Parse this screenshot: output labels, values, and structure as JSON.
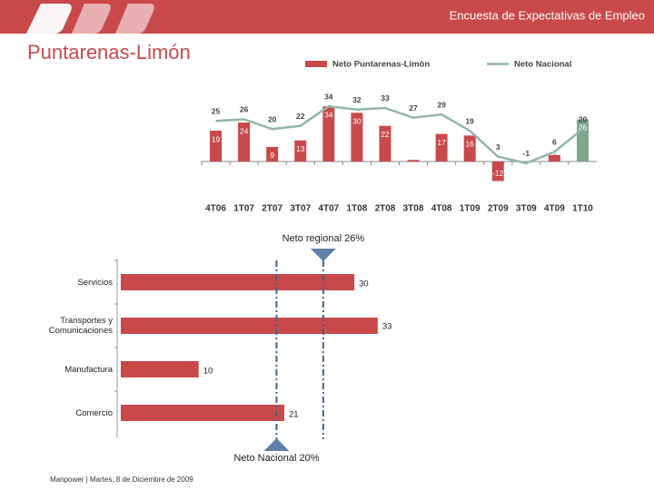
{
  "header": {
    "title": "Encuesta de Expectativas de Empleo"
  },
  "page_title": "Puntarenas-Limón",
  "footer": "Manpower | Martes, 8 de Diciembre de 2009",
  "chart_data": [
    {
      "type": "combo",
      "categories": [
        "4T06",
        "1T07",
        "2T07",
        "3T07",
        "4T07",
        "1T08",
        "2T08",
        "3T08",
        "4T08",
        "1T09",
        "2T09",
        "3T09",
        "4T09",
        "1T10"
      ],
      "series": [
        {
          "name": "Neto Puntarenas-Limón",
          "type": "bar",
          "color": "#c9494b",
          "colors": [
            "#c9494b",
            "#c9494b",
            "#c9494b",
            "#c9494b",
            "#c9494b",
            "#c9494b",
            "#c9494b",
            "#c9494b",
            "#c9494b",
            "#c9494b",
            "#c9494b",
            "#c9494b",
            "#c9494b",
            "#7fa68c"
          ],
          "values": [
            19,
            24,
            9,
            13,
            34,
            30,
            22,
            1,
            17,
            16,
            -12,
            0,
            4,
            26
          ],
          "value_labels": [
            "19",
            "24",
            "9",
            "13",
            "34",
            "30",
            "22",
            null,
            "17",
            "16",
            "-12",
            null,
            "4",
            "26"
          ]
        },
        {
          "name": "Neto Nacional",
          "type": "line",
          "color": "#93b5a7",
          "values": [
            25,
            26,
            20,
            22,
            34,
            32,
            33,
            27,
            29,
            19,
            3,
            -1,
            6,
            20
          ]
        }
      ],
      "ylim": [
        -12,
        38
      ]
    },
    {
      "type": "hbar",
      "categories": [
        "Servicios",
        "Transportes y Comunicaciones",
        "Manufactura",
        "Comercio"
      ],
      "values": [
        30,
        33,
        10,
        21
      ],
      "color": "#c9494b",
      "xlim": [
        0,
        35
      ],
      "reference_lines": [
        {
          "value": 26,
          "label": "Neto regional 26%",
          "marker": "top"
        },
        {
          "value": 20,
          "label": "Neto Nacional 20%",
          "marker": "bottom"
        }
      ]
    }
  ]
}
